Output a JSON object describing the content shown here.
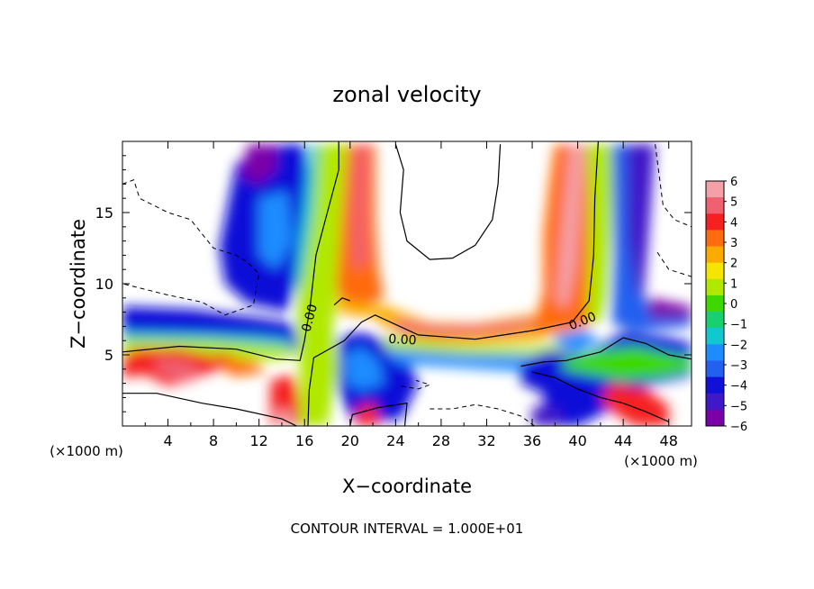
{
  "chart_data": {
    "type": "heatmap",
    "title": "zonal velocity",
    "xlabel": "X−coordinate",
    "ylabel": "Z−coordinate",
    "x_unit": "(×1000 m)",
    "x_unit_right": "(×1000 m)",
    "xlim": [
      0,
      50
    ],
    "ylim": [
      0,
      20
    ],
    "x_ticks": [
      4,
      8,
      12,
      16,
      20,
      24,
      28,
      32,
      36,
      40,
      44,
      48
    ],
    "y_ticks": [
      5,
      10,
      15
    ],
    "colorbar": {
      "range": [
        -6,
        6
      ],
      "ticks": [
        "6",
        "5",
        "4",
        "3",
        "2",
        "1",
        "0",
        "−1",
        "−2",
        "−3",
        "−4",
        "−5",
        "−6"
      ],
      "colors": [
        "#f4a0a8",
        "#f06070",
        "#f52020",
        "#fe6a10",
        "#fbab00",
        "#f4e600",
        "#b0e800",
        "#3ed800",
        "#18d070",
        "#12c8d0",
        "#1e8cff",
        "#2460f0",
        "#1010d8",
        "#4018c8",
        "#7a00a8"
      ]
    },
    "contour_labels": [
      {
        "x": 16.4,
        "y": 7.6,
        "text": "0.00",
        "angle": -75
      },
      {
        "x": 24.6,
        "y": 6.1,
        "text": "0.00",
        "angle": 3
      },
      {
        "x": 40.4,
        "y": 7.4,
        "text": "0.00",
        "angle": -22
      }
    ],
    "footer": "CONTOUR INTERVAL = 1.000E+01"
  }
}
